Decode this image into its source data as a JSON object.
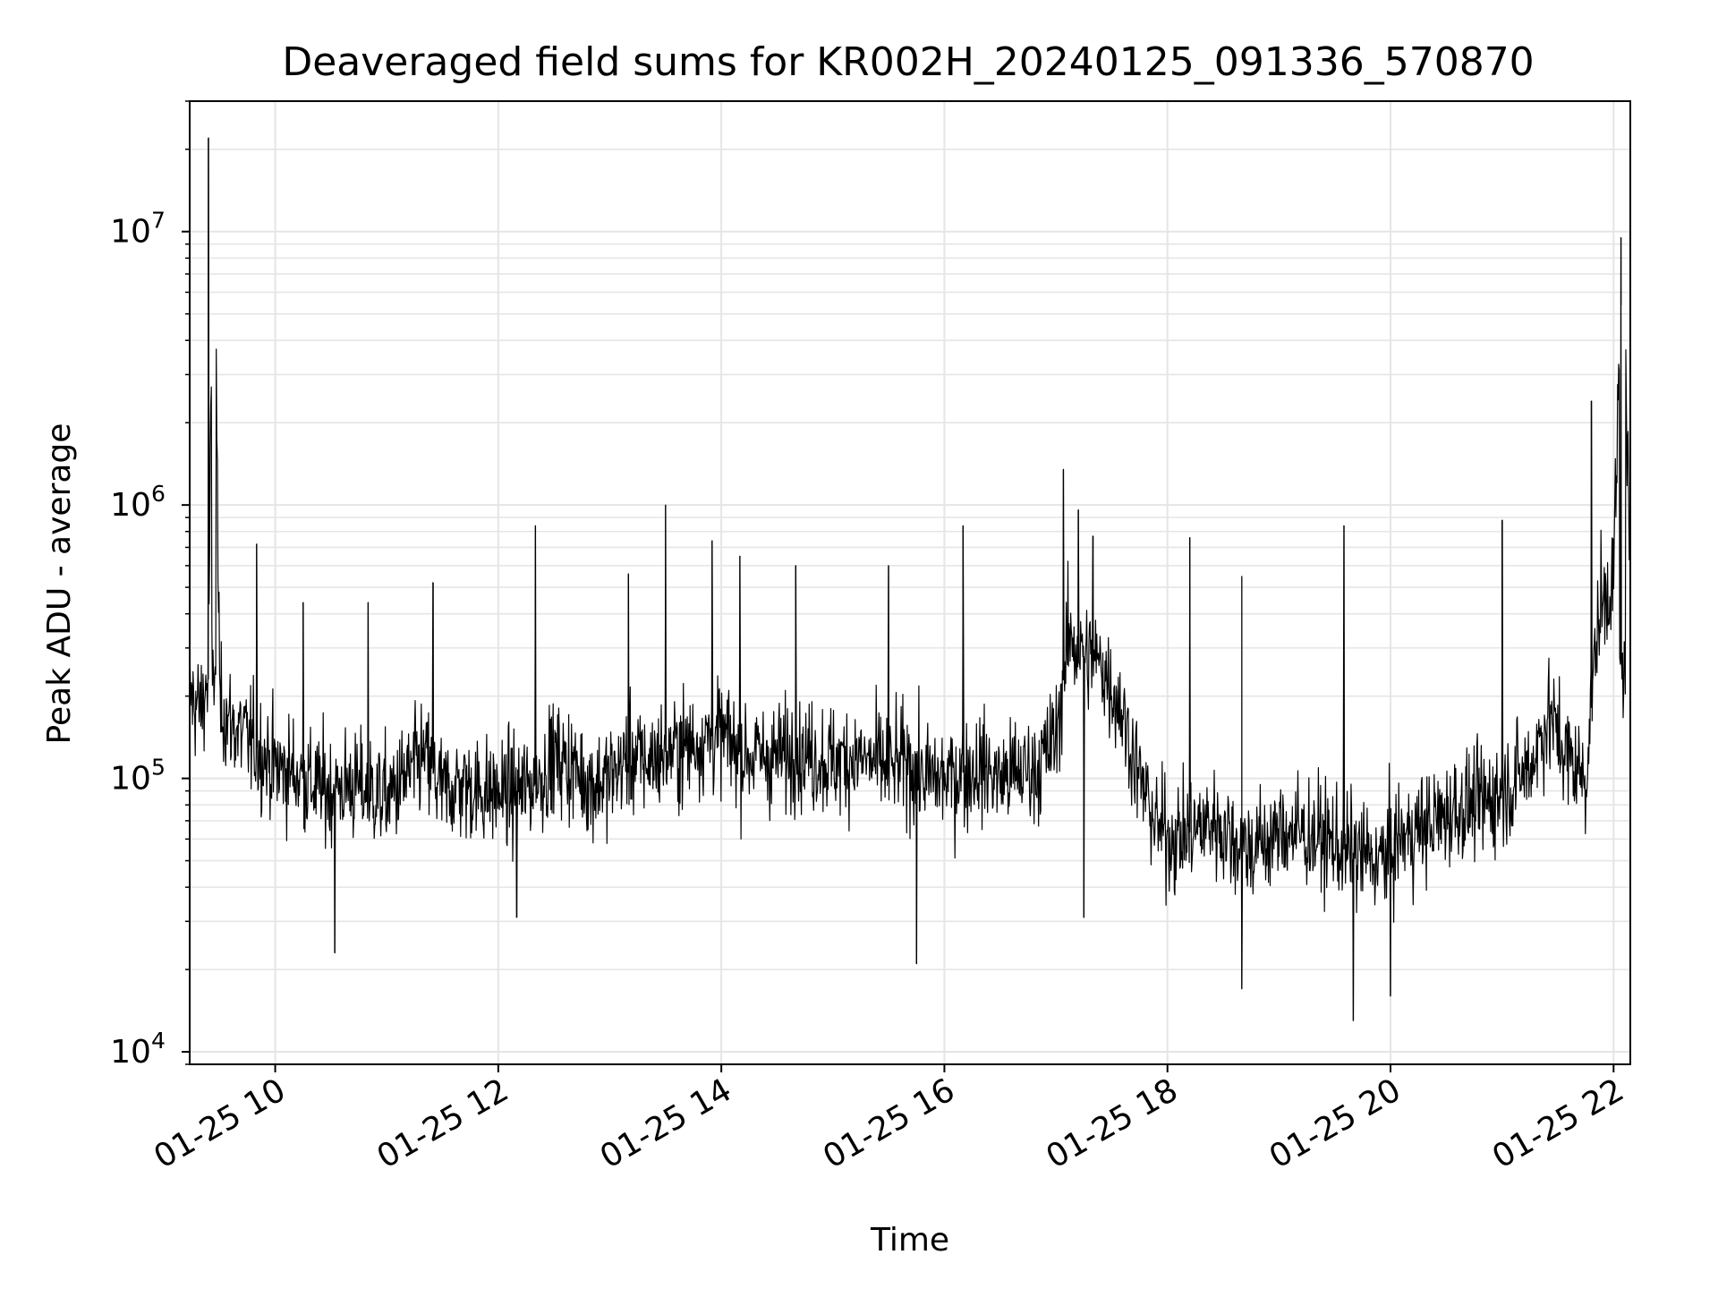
{
  "chart_data": {
    "type": "line",
    "title": "Deaveraged field sums for KR002H_20240125_091336_570870",
    "xlabel": "Time",
    "ylabel": "Peak ADU - average",
    "yscale": "log",
    "ylim": [
      9000,
      30000000
    ],
    "xlim": [
      "2024-01-25 09:14",
      "2024-01-25 22:09"
    ],
    "x_ticks": [
      {
        "label": "01-25 10",
        "value": "2024-01-25 10:00"
      },
      {
        "label": "01-25 12",
        "value": "2024-01-25 12:00"
      },
      {
        "label": "01-25 14",
        "value": "2024-01-25 14:00"
      },
      {
        "label": "01-25 16",
        "value": "2024-01-25 16:00"
      },
      {
        "label": "01-25 18",
        "value": "2024-01-25 18:00"
      },
      {
        "label": "01-25 20",
        "value": "2024-01-25 20:00"
      },
      {
        "label": "01-25 22",
        "value": "2024-01-25 22:00"
      }
    ],
    "y_ticks": [
      {
        "base": "10",
        "exp": "4",
        "value": 10000
      },
      {
        "base": "10",
        "exp": "5",
        "value": 100000
      },
      {
        "base": "10",
        "exp": "6",
        "value": 1000000
      },
      {
        "base": "10",
        "exp": "7",
        "value": 10000000
      }
    ],
    "grid": true,
    "line_color": "#000000",
    "grid_color": "#e5e5e5",
    "series": [
      {
        "x": [
          "2024-01-25 09:14",
          "2024-01-25 09:20",
          "2024-01-25 09:24",
          "2024-01-25 09:27",
          "2024-01-25 09:30",
          "2024-01-25 09:35",
          "2024-01-25 09:40",
          "2024-01-25 09:45",
          "2024-01-25 09:50",
          "2024-01-25 10:00",
          "2024-01-25 10:10",
          "2024-01-25 10:20",
          "2024-01-25 10:30",
          "2024-01-25 10:40",
          "2024-01-25 10:50",
          "2024-01-25 11:00",
          "2024-01-25 11:10",
          "2024-01-25 11:20",
          "2024-01-25 11:30",
          "2024-01-25 11:40",
          "2024-01-25 11:50",
          "2024-01-25 12:00",
          "2024-01-25 12:10",
          "2024-01-25 12:20",
          "2024-01-25 12:30",
          "2024-01-25 12:40",
          "2024-01-25 12:50",
          "2024-01-25 13:00",
          "2024-01-25 13:10",
          "2024-01-25 13:20",
          "2024-01-25 13:30",
          "2024-01-25 13:40",
          "2024-01-25 13:50",
          "2024-01-25 14:00",
          "2024-01-25 14:10",
          "2024-01-25 14:20",
          "2024-01-25 14:30",
          "2024-01-25 14:40",
          "2024-01-25 14:50",
          "2024-01-25 15:00",
          "2024-01-25 15:10",
          "2024-01-25 15:20",
          "2024-01-25 15:30",
          "2024-01-25 15:40",
          "2024-01-25 15:50",
          "2024-01-25 16:00",
          "2024-01-25 16:10",
          "2024-01-25 16:20",
          "2024-01-25 16:30",
          "2024-01-25 16:40",
          "2024-01-25 16:50",
          "2024-01-25 17:00",
          "2024-01-25 17:07",
          "2024-01-25 17:15",
          "2024-01-25 17:25",
          "2024-01-25 17:35",
          "2024-01-25 17:45",
          "2024-01-25 17:55",
          "2024-01-25 18:05",
          "2024-01-25 18:15",
          "2024-01-25 18:25",
          "2024-01-25 18:35",
          "2024-01-25 18:45",
          "2024-01-25 18:55",
          "2024-01-25 19:05",
          "2024-01-25 19:15",
          "2024-01-25 19:25",
          "2024-01-25 19:35",
          "2024-01-25 19:45",
          "2024-01-25 19:55",
          "2024-01-25 20:05",
          "2024-01-25 20:15",
          "2024-01-25 20:25",
          "2024-01-25 20:35",
          "2024-01-25 20:45",
          "2024-01-25 20:55",
          "2024-01-25 21:05",
          "2024-01-25 21:15",
          "2024-01-25 21:25",
          "2024-01-25 21:35",
          "2024-01-25 21:45",
          "2024-01-25 21:52",
          "2024-01-25 22:00",
          "2024-01-25 22:05",
          "2024-01-25 22:09"
        ],
        "y": [
          200000,
          180000,
          230000,
          22000000,
          200000,
          160000,
          150000,
          140000,
          130000,
          110000,
          105000,
          95000,
          90000,
          95000,
          90000,
          85000,
          100000,
          120000,
          90000,
          95000,
          90000,
          88000,
          90000,
          95000,
          120000,
          110000,
          95000,
          100000,
          120000,
          115000,
          125000,
          130000,
          140000,
          145000,
          125000,
          120000,
          120000,
          125000,
          120000,
          115000,
          120000,
          115000,
          110000,
          115000,
          100000,
          100000,
          105000,
          110000,
          100000,
          105000,
          110000,
          140000,
          330000,
          280000,
          260000,
          180000,
          100000,
          65000,
          60000,
          65000,
          70000,
          60000,
          55000,
          60000,
          65000,
          62000,
          60000,
          55000,
          52000,
          50000,
          60000,
          65000,
          70000,
          78000,
          80000,
          85000,
          95000,
          110000,
          170000,
          120000,
          100000,
          400000,
          550000,
          9500000,
          500000
        ]
      }
    ],
    "spikes": [
      {
        "x": "2024-01-25 09:24",
        "y": 22000000
      },
      {
        "x": "2024-01-25 09:50",
        "y": 720000
      },
      {
        "x": "2024-01-25 10:15",
        "y": 440000
      },
      {
        "x": "2024-01-25 10:50",
        "y": 440000
      },
      {
        "x": "2024-01-25 11:25",
        "y": 520000
      },
      {
        "x": "2024-01-25 12:20",
        "y": 840000
      },
      {
        "x": "2024-01-25 13:10",
        "y": 560000
      },
      {
        "x": "2024-01-25 13:30",
        "y": 1000000
      },
      {
        "x": "2024-01-25 13:55",
        "y": 740000
      },
      {
        "x": "2024-01-25 14:10",
        "y": 650000
      },
      {
        "x": "2024-01-25 14:40",
        "y": 600000
      },
      {
        "x": "2024-01-25 15:30",
        "y": 600000
      },
      {
        "x": "2024-01-25 16:10",
        "y": 840000
      },
      {
        "x": "2024-01-25 17:04",
        "y": 1350000
      },
      {
        "x": "2024-01-25 17:12",
        "y": 960000
      },
      {
        "x": "2024-01-25 17:20",
        "y": 770000
      },
      {
        "x": "2024-01-25 18:12",
        "y": 760000
      },
      {
        "x": "2024-01-25 18:40",
        "y": 550000
      },
      {
        "x": "2024-01-25 19:35",
        "y": 840000
      },
      {
        "x": "2024-01-25 21:00",
        "y": 880000
      },
      {
        "x": "2024-01-25 21:48",
        "y": 2400000
      },
      {
        "x": "2024-01-25 22:04",
        "y": 9500000
      }
    ],
    "dips": [
      {
        "x": "2024-01-25 10:32",
        "y": 23000
      },
      {
        "x": "2024-01-25 12:10",
        "y": 31000
      },
      {
        "x": "2024-01-25 15:45",
        "y": 21000
      },
      {
        "x": "2024-01-25 17:15",
        "y": 31000
      },
      {
        "x": "2024-01-25 18:40",
        "y": 17000
      },
      {
        "x": "2024-01-25 19:40",
        "y": 13000
      },
      {
        "x": "2024-01-25 20:00",
        "y": 16000
      }
    ]
  }
}
